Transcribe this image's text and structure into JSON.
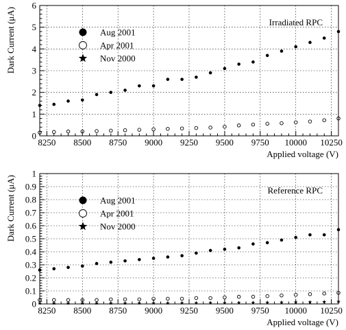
{
  "chart_data": [
    {
      "type": "scatter",
      "title": "Irradiated RPC",
      "xlabel": "Applied voltage (V)",
      "ylabel": "Dark Current (μA)",
      "xlim": [
        8200,
        10300
      ],
      "ylim": [
        0,
        6
      ],
      "xticks": [
        8250,
        8500,
        8750,
        9000,
        9250,
        9500,
        9750,
        10000,
        10250
      ],
      "yticks": [
        0,
        1,
        2,
        3,
        4,
        5,
        6
      ],
      "grid": true,
      "legend_position": "upper-left",
      "series": [
        {
          "name": "Aug 2001",
          "marker": "filled-circle",
          "x": [
            8200,
            8300,
            8400,
            8500,
            8600,
            8700,
            8800,
            8900,
            9000,
            9100,
            9200,
            9300,
            9400,
            9500,
            9600,
            9700,
            9800,
            9900,
            10000,
            10100,
            10200,
            10300
          ],
          "y": [
            1.4,
            1.45,
            1.6,
            1.65,
            1.9,
            2.0,
            2.1,
            2.3,
            2.3,
            2.6,
            2.6,
            2.7,
            2.9,
            3.1,
            3.3,
            3.4,
            3.7,
            3.9,
            4.1,
            4.3,
            4.5,
            4.8
          ]
        },
        {
          "name": "Apr 2001",
          "marker": "open-circle",
          "x": [
            8200,
            8300,
            8400,
            8500,
            8600,
            8700,
            8800,
            8900,
            9000,
            9100,
            9200,
            9300,
            9400,
            9500,
            9600,
            9700,
            9800,
            9900,
            10000,
            10100,
            10200,
            10300
          ],
          "y": [
            0.15,
            0.18,
            0.2,
            0.2,
            0.22,
            0.24,
            0.26,
            0.28,
            0.3,
            0.32,
            0.34,
            0.36,
            0.38,
            0.42,
            0.48,
            0.52,
            0.56,
            0.58,
            0.62,
            0.66,
            0.72,
            0.8
          ]
        },
        {
          "name": "Nov 2000",
          "marker": "star",
          "x": [],
          "y": []
        }
      ]
    },
    {
      "type": "scatter",
      "title": "Reference RPC",
      "xlabel": "Applied voltage (V)",
      "ylabel": "Dark Current (μA)",
      "xlim": [
        8200,
        10300
      ],
      "ylim": [
        0,
        1
      ],
      "xticks": [
        8250,
        8500,
        8750,
        9000,
        9250,
        9500,
        9750,
        10000,
        10250
      ],
      "yticks": [
        0,
        0.1,
        0.2,
        0.3,
        0.4,
        0.5,
        0.6,
        0.7,
        0.8,
        0.9,
        1
      ],
      "grid": true,
      "legend_position": "upper-left",
      "series": [
        {
          "name": "Aug 2001",
          "marker": "filled-circle",
          "x": [
            8200,
            8300,
            8400,
            8500,
            8600,
            8700,
            8800,
            8900,
            9000,
            9100,
            9200,
            9300,
            9400,
            9500,
            9600,
            9700,
            9800,
            9900,
            10000,
            10100,
            10200,
            10300
          ],
          "y": [
            0.26,
            0.27,
            0.28,
            0.29,
            0.31,
            0.32,
            0.33,
            0.34,
            0.35,
            0.36,
            0.37,
            0.39,
            0.41,
            0.42,
            0.43,
            0.46,
            0.47,
            0.49,
            0.51,
            0.53,
            0.53,
            0.57
          ]
        },
        {
          "name": "Apr 2001",
          "marker": "open-circle",
          "x": [
            8200,
            8300,
            8400,
            8500,
            8600,
            8700,
            8800,
            8900,
            9000,
            9100,
            9200,
            9300,
            9400,
            9500,
            9600,
            9700,
            9800,
            9900,
            10000,
            10100,
            10200,
            10300
          ],
          "y": [
            0.03,
            0.03,
            0.03,
            0.03,
            0.03,
            0.035,
            0.035,
            0.035,
            0.04,
            0.04,
            0.04,
            0.045,
            0.045,
            0.05,
            0.055,
            0.055,
            0.06,
            0.065,
            0.07,
            0.075,
            0.08,
            0.085
          ]
        },
        {
          "name": "Nov 2000",
          "marker": "star",
          "x": [
            8200,
            8300,
            8400,
            8500,
            8600,
            8700,
            8800,
            8900,
            9000,
            9100,
            9200,
            9300,
            9400,
            9500,
            9600,
            9700,
            9800,
            9900,
            10000,
            10100,
            10200,
            10300
          ],
          "y": [
            0.005,
            0.005,
            0.005,
            0.005,
            0.005,
            0.005,
            0.005,
            0.006,
            0.006,
            0.006,
            0.007,
            0.007,
            0.008,
            0.008,
            0.009,
            0.01,
            0.011,
            0.012,
            0.013,
            0.014,
            0.016,
            0.018
          ]
        }
      ]
    }
  ]
}
